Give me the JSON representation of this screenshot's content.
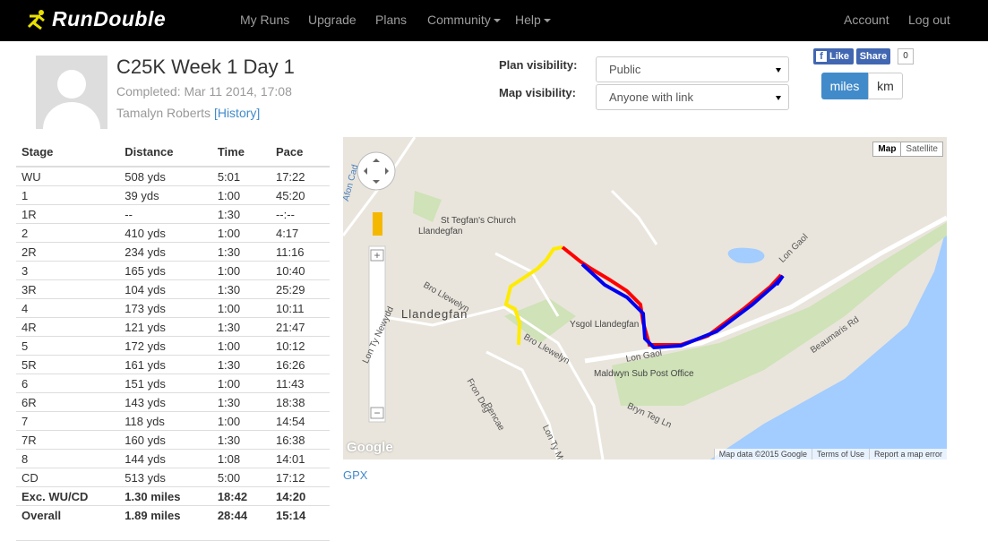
{
  "nav": {
    "logo": "RunDouble",
    "links": [
      "My Runs",
      "Upgrade",
      "Plans",
      "Community",
      "Help"
    ],
    "right": [
      "Account",
      "Log out"
    ]
  },
  "run": {
    "title": "C25K Week 1 Day 1",
    "completed": "Completed: Mar 11 2014, 17:08",
    "athlete": "Tamalyn Roberts",
    "history": "[History]"
  },
  "settings": {
    "plan_label": "Plan visibility:",
    "plan_value": "Public",
    "map_label": "Map visibility:",
    "map_value": "Anyone with link"
  },
  "social": {
    "like": "Like",
    "share": "Share",
    "count": 0
  },
  "units": [
    "miles",
    "km"
  ],
  "table": {
    "header": [
      "Stage",
      "Distance",
      "Time",
      "Pace"
    ],
    "rows": [
      [
        "WU",
        "508 yds",
        "5:01",
        "17:22"
      ],
      [
        "1",
        "39 yds",
        "1:00",
        "45:20"
      ],
      [
        "1R",
        "--",
        "1:30",
        "--:--"
      ],
      [
        "2",
        "410 yds",
        "1:00",
        "4:17"
      ],
      [
        "2R",
        "234 yds",
        "1:30",
        "11:16"
      ],
      [
        "3",
        "165 yds",
        "1:00",
        "10:40"
      ],
      [
        "3R",
        "104 yds",
        "1:30",
        "25:29"
      ],
      [
        "4",
        "173 yds",
        "1:00",
        "10:11"
      ],
      [
        "4R",
        "121 yds",
        "1:30",
        "21:47"
      ],
      [
        "5",
        "172 yds",
        "1:00",
        "10:12"
      ],
      [
        "5R",
        "161 yds",
        "1:30",
        "16:26"
      ],
      [
        "6",
        "151 yds",
        "1:00",
        "11:43"
      ],
      [
        "6R",
        "143 yds",
        "1:30",
        "18:38"
      ],
      [
        "7",
        "118 yds",
        "1:00",
        "14:54"
      ],
      [
        "7R",
        "160 yds",
        "1:30",
        "16:38"
      ],
      [
        "8",
        "144 yds",
        "1:08",
        "14:01"
      ],
      [
        "CD",
        "513 yds",
        "5:00",
        "17:12"
      ]
    ],
    "totals": [
      [
        "Exc. WU/CD",
        "1.30 miles",
        "18:42",
        "14:20"
      ],
      [
        "Overall",
        "1.89 miles",
        "28:44",
        "15:14"
      ]
    ]
  },
  "map": {
    "type_buttons": [
      "Map",
      "Satellite"
    ],
    "labels": [
      "St Tegfan's Church",
      "Llandegfan",
      "Llandegfan",
      "Ysgol Llandegfan",
      "Maldwyn Sub Post Office",
      "Bro Llewelyn",
      "Bro Llewelyn",
      "Lon Gaol",
      "Lon Gaol",
      "Beaumaris Rd",
      "Bryn Teg Ln",
      "Lon Ty Newydd",
      "Lon Ty Mawr",
      "Pencae",
      "Fron Deg",
      "Afon Cad"
    ],
    "attribution": [
      "Map data ©2015 Google",
      "Terms of Use",
      "Report a map error"
    ],
    "logo": "Google"
  },
  "gpx": "GPX"
}
